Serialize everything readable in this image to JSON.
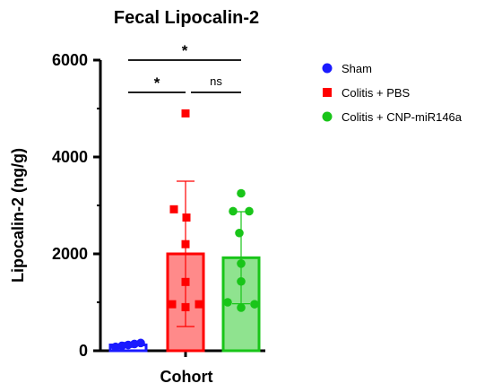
{
  "chart_data": {
    "type": "bar",
    "title": "Fecal Lipocalin-2",
    "xlabel": "Cohort",
    "ylabel": "Lipocalin-2 (ng/g)",
    "ylim": [
      0,
      6000
    ],
    "yticks": [
      "0",
      "2000",
      "4000",
      "6000"
    ],
    "grid": false,
    "legend_position": "right",
    "series": [
      {
        "name": "Sham",
        "color": "#1a1aff",
        "fill": "none",
        "marker": "circle",
        "mean": 120,
        "sd": 50,
        "points": [
          80,
          100,
          120,
          140,
          160
        ]
      },
      {
        "name": "Colitis + PBS",
        "color": "#ff0000",
        "fill": "#ff8a8a",
        "marker": "square",
        "mean": 2000,
        "sd": 1500,
        "points": [
          4900,
          2920,
          2750,
          2200,
          1420,
          960,
          960,
          900
        ]
      },
      {
        "name": "Colitis + CNP-miR146a",
        "color": "#19c519",
        "fill": "#8fe38f",
        "marker": "circle",
        "mean": 1920,
        "sd": 950,
        "points": [
          3250,
          2880,
          2880,
          2430,
          1800,
          1430,
          1000,
          960,
          890
        ]
      }
    ],
    "comparisons": [
      {
        "from": 0,
        "to": 1,
        "label": "*"
      },
      {
        "from": 1,
        "to": 2,
        "label": "ns"
      },
      {
        "from": 0,
        "to": 2,
        "label": "*"
      }
    ]
  }
}
